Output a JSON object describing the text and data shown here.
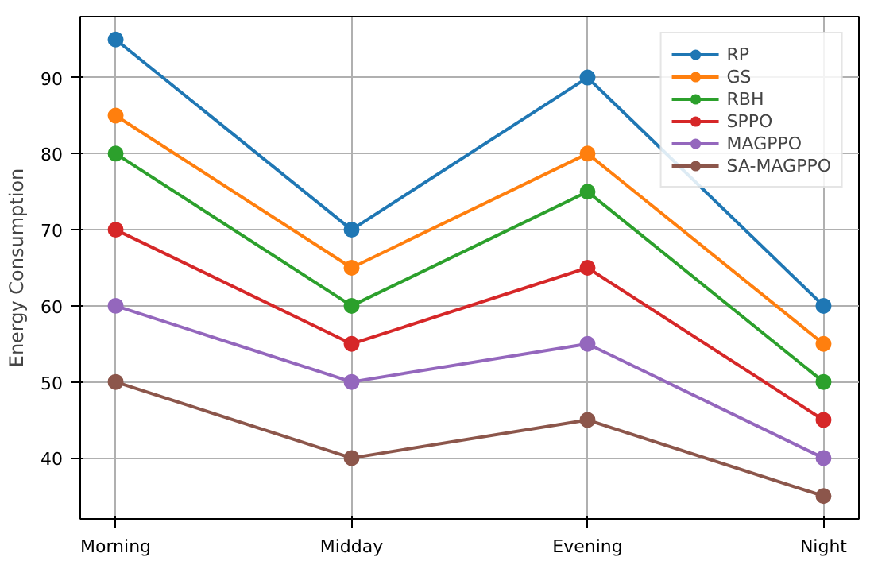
{
  "chart_data": {
    "type": "line",
    "ylabel": "Energy Consumption",
    "categories": [
      "Morning",
      "Midday",
      "Evening",
      "Night"
    ],
    "series": [
      {
        "name": "RP",
        "color": "#1f77b4",
        "values": [
          95,
          70,
          90,
          60
        ]
      },
      {
        "name": "GS",
        "color": "#ff7f0e",
        "values": [
          85,
          65,
          80,
          55
        ]
      },
      {
        "name": "RBH",
        "color": "#2ca02c",
        "values": [
          80,
          60,
          75,
          50
        ]
      },
      {
        "name": "SPPO",
        "color": "#d62728",
        "values": [
          70,
          55,
          65,
          45
        ]
      },
      {
        "name": "MAGPPO",
        "color": "#9467bd",
        "values": [
          60,
          50,
          55,
          40
        ]
      },
      {
        "name": "SA-MAGPPO",
        "color": "#8c564b",
        "values": [
          50,
          40,
          45,
          35
        ]
      }
    ],
    "ylim": [
      32,
      98
    ],
    "yticks": [
      40,
      50,
      60,
      70,
      80,
      90
    ],
    "grid": true,
    "legend": "top right",
    "marker": "circle",
    "line_style": "solid"
  }
}
